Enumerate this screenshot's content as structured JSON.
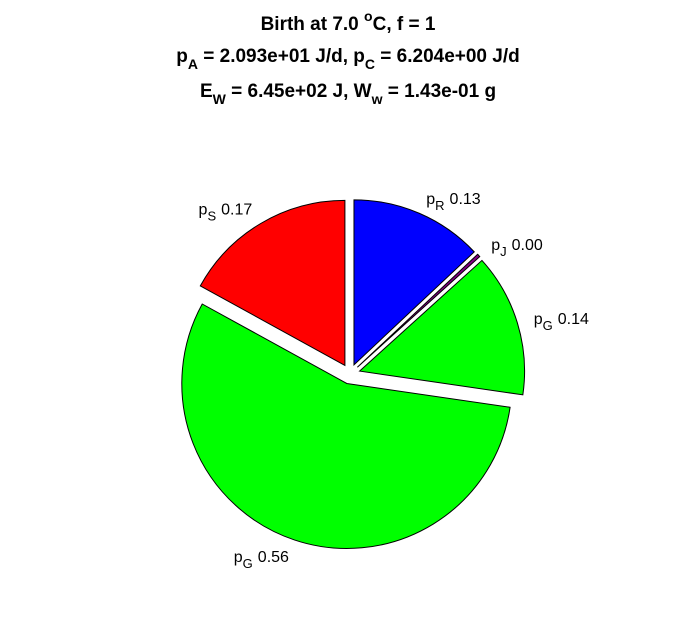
{
  "chart_data": {
    "type": "pie",
    "title": [
      [
        "Birth at 7.0 ",
        "o",
        "C, f = 1"
      ],
      [
        "p",
        "A",
        " = 2.093e+01 J/d, p",
        "C",
        " = 6.204e+00 J/d"
      ],
      [
        "E",
        "W",
        " = 6.45e+02 J, W",
        "w",
        " = 1.43e-01 g"
      ]
    ],
    "categories": [
      {
        "symbol": "p",
        "subscript": "R"
      },
      {
        "symbol": "p",
        "subscript": "J"
      },
      {
        "symbol": "p",
        "subscript": "G"
      },
      {
        "symbol": "p",
        "subscript": "G"
      },
      {
        "symbol": "p",
        "subscript": "S"
      }
    ],
    "values": [
      0.13,
      0.003,
      0.14,
      0.557,
      0.17
    ],
    "value_labels": [
      "0.13",
      "0.00",
      "0.14",
      "0.56",
      "0.17"
    ],
    "colors": [
      "#0000ff",
      "#800080",
      "#00ff00",
      "#00ff00",
      "#ff0000"
    ]
  }
}
